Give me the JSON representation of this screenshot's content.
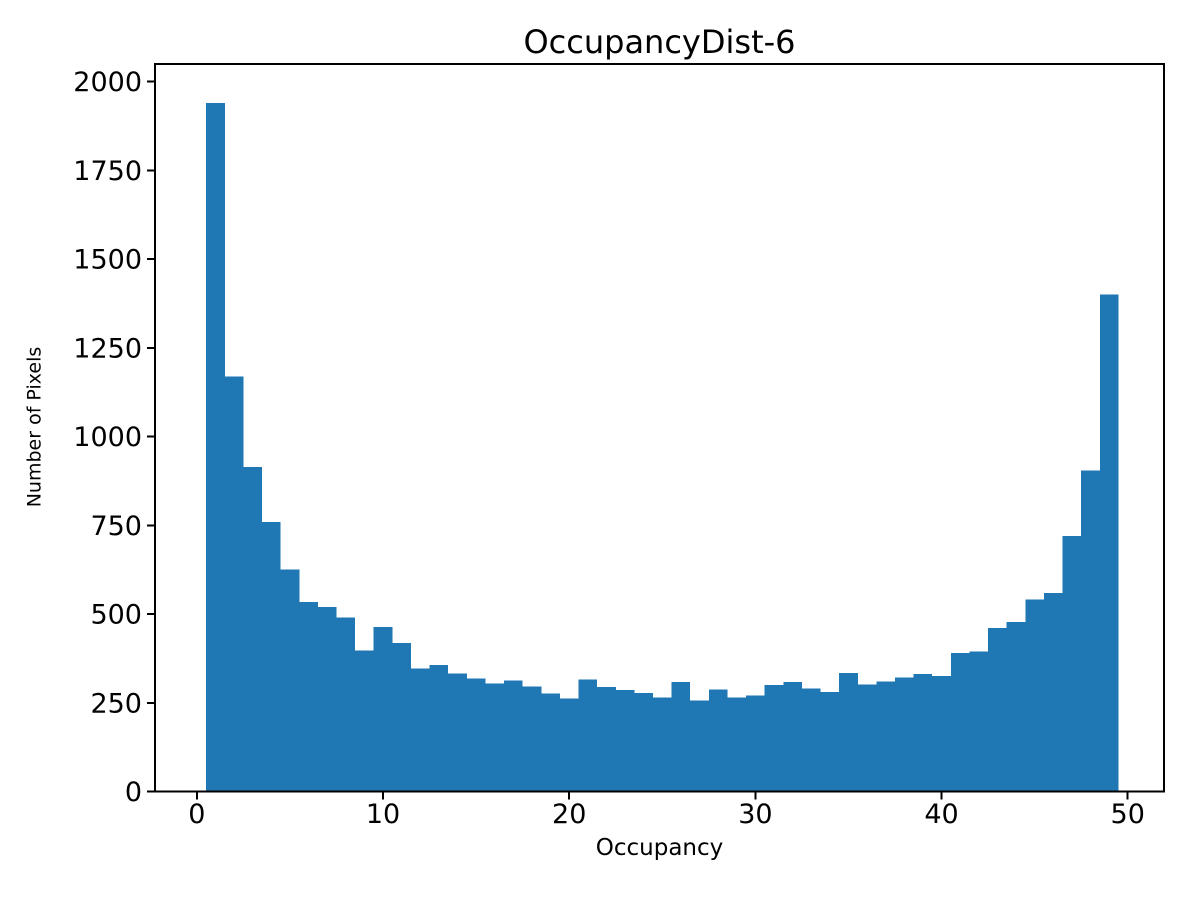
{
  "colors": {
    "bar": "#1f77b4",
    "axis": "#000000",
    "background": "#ffffff",
    "text": "#000000"
  },
  "chart_data": {
    "type": "bar",
    "subtype": "histogram",
    "title": "OccupancyDist-6",
    "xlabel": "Occupancy",
    "ylabel": "Number of Pixels",
    "grid": false,
    "legend": null,
    "bin_start": 0.5,
    "bin_width": 1,
    "xlim": [
      -2.25,
      51.95
    ],
    "ylim": [
      0,
      2050
    ],
    "categories": [
      1,
      2,
      3,
      4,
      5,
      6,
      7,
      8,
      9,
      10,
      11,
      12,
      13,
      14,
      15,
      16,
      17,
      18,
      19,
      20,
      21,
      22,
      23,
      24,
      25,
      26,
      27,
      28,
      29,
      30,
      31,
      32,
      33,
      34,
      35,
      36,
      37,
      38,
      39,
      40,
      41,
      42,
      43,
      44,
      45,
      46,
      47,
      48,
      49
    ],
    "values": [
      1940,
      1170,
      915,
      760,
      625,
      534,
      520,
      491,
      398,
      463,
      419,
      347,
      356,
      333,
      318,
      305,
      313,
      296,
      276,
      262,
      316,
      295,
      286,
      278,
      265,
      309,
      257,
      287,
      265,
      271,
      300,
      309,
      290,
      281,
      334,
      301,
      310,
      321,
      331,
      325,
      390,
      394,
      461,
      477,
      541,
      559,
      720,
      905,
      1400
    ],
    "xticks": [
      {
        "value": 0,
        "label": "0"
      },
      {
        "value": 10,
        "label": "10"
      },
      {
        "value": 20,
        "label": "20"
      },
      {
        "value": 30,
        "label": "30"
      },
      {
        "value": 40,
        "label": "40"
      },
      {
        "value": 50,
        "label": "50"
      }
    ],
    "yticks": [
      {
        "value": 0,
        "label": "0"
      },
      {
        "value": 250,
        "label": "250"
      },
      {
        "value": 500,
        "label": "500"
      },
      {
        "value": 750,
        "label": "750"
      },
      {
        "value": 1000,
        "label": "1000"
      },
      {
        "value": 1250,
        "label": "1250"
      },
      {
        "value": 1500,
        "label": "1500"
      },
      {
        "value": 1750,
        "label": "1750"
      },
      {
        "value": 2000,
        "label": "2000"
      }
    ]
  }
}
